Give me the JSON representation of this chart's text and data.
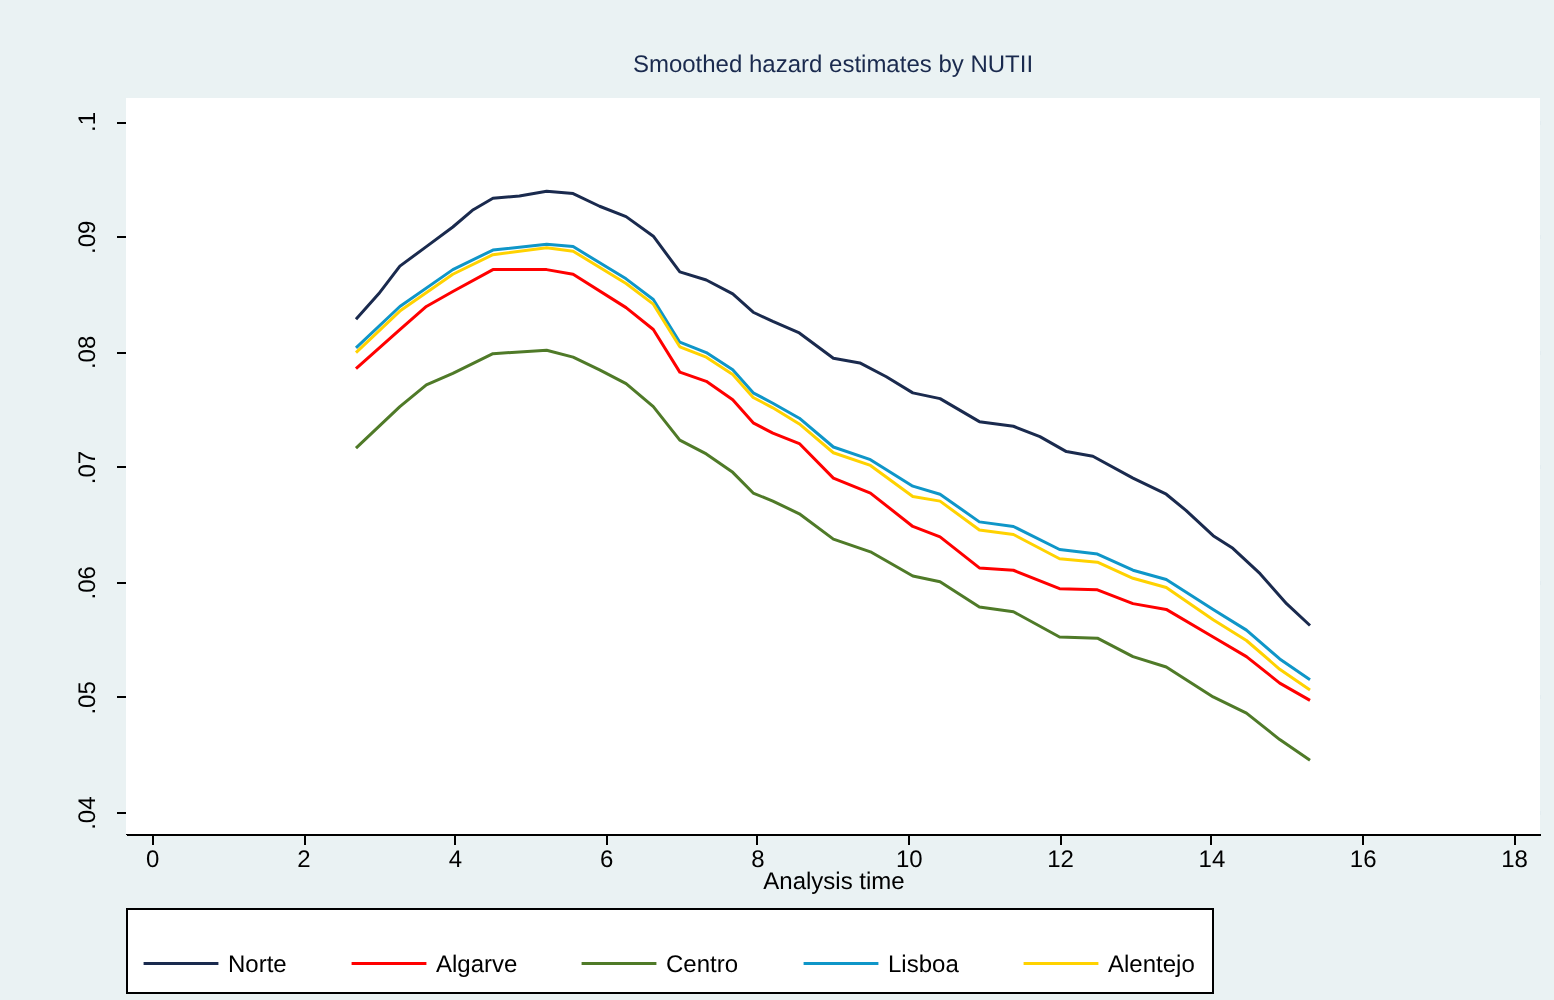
{
  "chart_data": {
    "type": "line",
    "title": "Smoothed hazard estimates by NUTII",
    "xlabel": "Analysis time",
    "xlim": [
      -0.34,
      18.35
    ],
    "xticks": [
      0,
      2,
      4,
      6,
      8,
      10,
      12,
      14,
      16,
      18
    ],
    "ylim": [
      0.0381,
      0.102
    ],
    "yticks": [
      {
        "value": 0.04,
        "label": ".04"
      },
      {
        "value": 0.05,
        "label": ".05"
      },
      {
        "value": 0.06,
        "label": ".06"
      },
      {
        "value": 0.07,
        "label": ".07"
      },
      {
        "value": 0.08,
        "label": ".08"
      },
      {
        "value": 0.09,
        "label": ".09"
      },
      {
        "value": 0.1,
        "label": ".1"
      }
    ],
    "grid": "y",
    "legend": "bottom",
    "marker": "none",
    "line_style": "solid",
    "series": [
      {
        "name": "Norte",
        "color": "#1a2a4e",
        "x": [
          2.7,
          3.0,
          3.28,
          3.63,
          3.98,
          4.25,
          4.51,
          4.86,
          5.22,
          5.57,
          5.92,
          6.27,
          6.63,
          6.98,
          7.33,
          7.68,
          7.95,
          8.21,
          8.56,
          9.01,
          9.36,
          9.71,
          10.06,
          10.42,
          10.94,
          11.39,
          11.74,
          12.09,
          12.44,
          12.97,
          13.41,
          13.67,
          14.03,
          14.29,
          14.65,
          15.0,
          15.31
        ],
        "values": [
          0.0828,
          0.085,
          0.0874,
          0.0891,
          0.0908,
          0.0923,
          0.0933,
          0.0935,
          0.0939,
          0.0937,
          0.0926,
          0.0917,
          0.09,
          0.0869,
          0.0862,
          0.085,
          0.0834,
          0.0826,
          0.0816,
          0.0794,
          0.079,
          0.0778,
          0.0764,
          0.0759,
          0.0739,
          0.0735,
          0.0726,
          0.0713,
          0.0709,
          0.069,
          0.0676,
          0.0662,
          0.064,
          0.0629,
          0.0607,
          0.0581,
          0.0562
        ]
      },
      {
        "name": "Algarve",
        "color": "#ff0000",
        "x": [
          2.7,
          3.28,
          3.63,
          3.98,
          4.51,
          5.22,
          5.57,
          6.27,
          6.63,
          6.98,
          7.33,
          7.68,
          7.95,
          8.21,
          8.56,
          9.01,
          9.5,
          10.06,
          10.42,
          10.94,
          11.39,
          12.0,
          12.5,
          12.97,
          13.41,
          14.03,
          14.47,
          14.91,
          15.31
        ],
        "values": [
          0.0785,
          0.0819,
          0.0839,
          0.0852,
          0.0871,
          0.0871,
          0.0867,
          0.0838,
          0.0819,
          0.0782,
          0.0774,
          0.0758,
          0.0738,
          0.0729,
          0.072,
          0.069,
          0.0677,
          0.0648,
          0.0639,
          0.0612,
          0.061,
          0.0594,
          0.0593,
          0.0581,
          0.0576,
          0.0552,
          0.0535,
          0.0512,
          0.0497
        ]
      },
      {
        "name": "Centro",
        "color": "#4f7a28",
        "x": [
          2.7,
          3.28,
          3.63,
          3.98,
          4.51,
          5.22,
          5.57,
          5.92,
          6.27,
          6.63,
          6.98,
          7.33,
          7.68,
          7.95,
          8.21,
          8.56,
          9.01,
          9.5,
          10.06,
          10.42,
          10.94,
          11.39,
          12.0,
          12.5,
          12.97,
          13.41,
          14.03,
          14.47,
          14.91,
          15.31
        ],
        "values": [
          0.0716,
          0.0752,
          0.0771,
          0.0781,
          0.0798,
          0.0801,
          0.0795,
          0.0784,
          0.0772,
          0.0752,
          0.0723,
          0.0711,
          0.0695,
          0.0677,
          0.067,
          0.0659,
          0.0637,
          0.0626,
          0.0605,
          0.06,
          0.0578,
          0.0574,
          0.0552,
          0.0551,
          0.0535,
          0.0526,
          0.05,
          0.0486,
          0.0463,
          0.0445
        ]
      },
      {
        "name": "Lisboa",
        "color": "#0f96c8",
        "x": [
          2.7,
          3.28,
          3.98,
          4.51,
          5.22,
          5.57,
          6.27,
          6.63,
          6.98,
          7.33,
          7.68,
          7.95,
          8.21,
          8.56,
          9.01,
          9.5,
          10.06,
          10.42,
          10.94,
          11.39,
          12.0,
          12.5,
          12.97,
          13.41,
          14.03,
          14.47,
          14.91,
          15.31
        ],
        "values": [
          0.0803,
          0.0839,
          0.0871,
          0.0888,
          0.0893,
          0.0891,
          0.0863,
          0.0845,
          0.0808,
          0.0799,
          0.0784,
          0.0764,
          0.0755,
          0.0742,
          0.0717,
          0.0706,
          0.0683,
          0.0676,
          0.0652,
          0.0648,
          0.0628,
          0.0624,
          0.061,
          0.0602,
          0.0576,
          0.0558,
          0.0533,
          0.0515
        ]
      },
      {
        "name": "Alentejo",
        "color": "#ffd200",
        "x": [
          2.7,
          3.28,
          3.98,
          4.51,
          5.22,
          5.57,
          6.27,
          6.63,
          6.98,
          7.33,
          7.68,
          7.95,
          8.21,
          8.56,
          9.01,
          9.5,
          10.06,
          10.42,
          10.94,
          11.39,
          12.0,
          12.5,
          12.97,
          13.41,
          14.03,
          14.47,
          14.91,
          15.31
        ],
        "values": [
          0.0799,
          0.0835,
          0.0867,
          0.0884,
          0.089,
          0.0887,
          0.0859,
          0.0841,
          0.0804,
          0.0795,
          0.078,
          0.076,
          0.0751,
          0.0737,
          0.0712,
          0.0701,
          0.0674,
          0.067,
          0.0645,
          0.0641,
          0.062,
          0.0617,
          0.0603,
          0.0595,
          0.0567,
          0.0549,
          0.0524,
          0.0506
        ]
      }
    ]
  }
}
